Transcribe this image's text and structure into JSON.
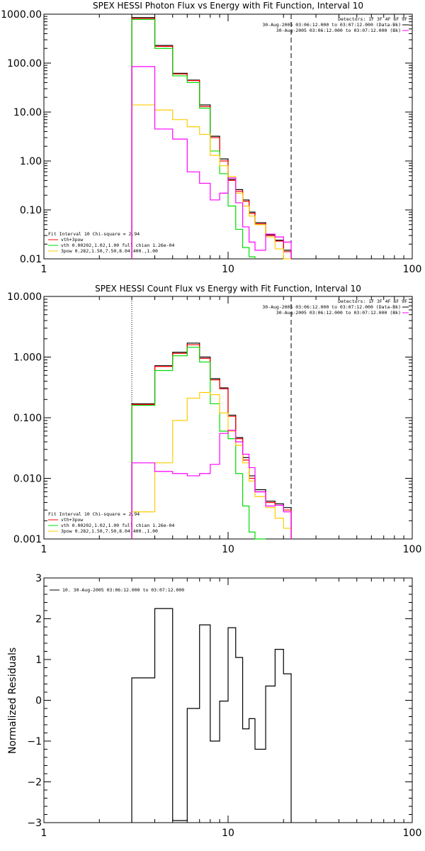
{
  "colors": {
    "sum": "#000000",
    "vth_3pow": "#ff0000",
    "vth": "#00dd00",
    "pow": "#ffcc00",
    "data": "#ff00ff",
    "boundary": "#000000"
  },
  "chart_data": [
    {
      "id": "photon",
      "type": "line",
      "step": true,
      "title": "SPEX HESSI Photon Flux vs Energy with Fit Function, Interval 10",
      "xlabel": "",
      "ylabel": "",
      "xscale": "log",
      "yscale": "log",
      "xlim": [
        1,
        100
      ],
      "ylim": [
        0.01,
        1000
      ],
      "xticks": [
        1,
        10,
        100
      ],
      "xtick_labels": [
        "1",
        "10",
        "100"
      ],
      "yticks": [
        0.01,
        0.1,
        1,
        10,
        100,
        1000
      ],
      "ytick_labels": [
        "0.01",
        "0.10",
        "1.00",
        "10.00",
        "100.00",
        "1000.00"
      ],
      "legend_topright": [
        "Detectors: 1F 3F 4F 6F 9F",
        "30-Aug-2005 03:06:12.000 to 03:07:12.000 (Data-Bk)",
        "30-Aug-2005 03:06:12.000 to 03:07:12.000 (Bk)"
      ],
      "legend_bottomleft": [
        "Fit Interval 10   Chi-square = 2.94",
        "vth+3pow",
        "vth 0.00202,1.02,1.00  full chian 1.26e-04",
        "3pow 0.282,1.50,7.50,8.04,400.,1.00"
      ],
      "bin_edges": [
        3.0,
        4.0,
        5.0,
        6.0,
        7.0,
        8.0,
        9.0,
        10.0,
        11.0,
        12.0,
        13.0,
        14.0,
        16.0,
        18.0,
        20.0,
        22.0
      ],
      "vlines": [
        3.0,
        22.0
      ],
      "series": [
        {
          "key": "sum",
          "values": [
            850,
            230,
            62,
            45,
            14,
            3.2,
            1.1,
            0.42,
            0.26,
            0.16,
            0.09,
            0.055,
            0.031,
            0.024,
            0.015
          ]
        },
        {
          "key": "vth_3pow",
          "values": [
            820,
            220,
            60,
            44,
            13,
            3.0,
            1.0,
            0.4,
            0.24,
            0.15,
            0.085,
            0.052,
            0.03,
            0.023,
            0.014
          ]
        },
        {
          "key": "vth",
          "values": [
            780,
            200,
            55,
            40,
            12,
            1.6,
            0.55,
            0.12,
            0.04,
            0.017,
            0.011
          ]
        },
        {
          "key": "pow",
          "values": [
            14,
            11,
            7,
            5,
            3.5,
            1.3,
            0.8,
            0.48,
            0.22,
            0.12,
            0.075,
            0.05,
            0.028,
            0.016,
            0.01
          ]
        },
        {
          "key": "data",
          "values": [
            85,
            4.5,
            2.8,
            0.6,
            0.35,
            0.16,
            0.22,
            0.45,
            0.14,
            0.045,
            0.022,
            0.015,
            0.032,
            0.028,
            0.022
          ]
        }
      ]
    },
    {
      "id": "count",
      "type": "line",
      "step": true,
      "title": "SPEX HESSI Count Flux vs Energy with Fit Function, Interval 10",
      "xlabel": "",
      "ylabel": "",
      "xscale": "log",
      "yscale": "log",
      "xlim": [
        1,
        100
      ],
      "ylim": [
        0.001,
        10
      ],
      "xticks": [
        1,
        10,
        100
      ],
      "xtick_labels": [
        "1",
        "10",
        "100"
      ],
      "yticks": [
        0.001,
        0.01,
        0.1,
        1,
        10
      ],
      "ytick_labels": [
        "0.001",
        "0.010",
        "0.100",
        "1.000",
        "10.000"
      ],
      "legend_topright": [
        "Detectors: 1F 3F 4F 6F 9F",
        "30-Aug-2005 03:06:12.000 to 03:07:12.000 (Data-Bk)",
        "30-Aug-2005 03:06:12.000 to 03:07:12.000 (Bk)"
      ],
      "legend_bottomleft": [
        "Fit Interval 10   Chi-square = 2.94",
        "vth+3pow",
        "vth 0.00202,1.02,1.00  full chian 1.26e-04",
        "3pow 0.282,1.50,7.50,8.04,400.,1.00"
      ],
      "bin_edges": [
        3.0,
        4.0,
        5.0,
        6.0,
        7.0,
        8.0,
        9.0,
        10.0,
        11.0,
        12.0,
        13.0,
        14.0,
        16.0,
        18.0,
        20.0,
        22.0
      ],
      "vlines": [
        3.0,
        22.0
      ],
      "series": [
        {
          "key": "sum",
          "values": [
            0.17,
            0.72,
            1.2,
            1.7,
            1.0,
            0.44,
            0.31,
            0.11,
            0.047,
            0.022,
            0.011,
            0.0065,
            0.0042,
            0.0038,
            0.0033
          ]
        },
        {
          "key": "vth_3pow",
          "values": [
            0.165,
            0.7,
            1.15,
            1.6,
            0.95,
            0.42,
            0.3,
            0.105,
            0.045,
            0.02,
            0.01,
            0.006,
            0.004,
            0.0036,
            0.003
          ]
        },
        {
          "key": "vth",
          "values": [
            0.16,
            0.6,
            1.05,
            1.45,
            0.83,
            0.17,
            0.06,
            0.045,
            0.012,
            0.0035,
            0.0013,
            0.0008
          ]
        },
        {
          "key": "pow",
          "values": [
            0.0028,
            0.018,
            0.09,
            0.21,
            0.26,
            0.24,
            0.12,
            0.06,
            0.035,
            0.018,
            0.009,
            0.005,
            0.0033,
            0.0022,
            0.0015
          ]
        },
        {
          "key": "data",
          "values": [
            0.018,
            0.013,
            0.012,
            0.011,
            0.012,
            0.017,
            0.055,
            0.062,
            0.04,
            0.025,
            0.015,
            0.006,
            0.0035,
            0.0036,
            0.0028
          ]
        }
      ]
    },
    {
      "id": "residuals",
      "type": "line",
      "step": true,
      "title": "",
      "xlabel": "",
      "ylabel": "Normalized Residuals",
      "xscale": "log",
      "yscale": "linear",
      "xlim": [
        1,
        100
      ],
      "ylim": [
        -3,
        3
      ],
      "xticks": [
        1,
        10,
        100
      ],
      "xtick_labels": [
        "1",
        "10",
        "100"
      ],
      "yticks": [
        -3,
        -2,
        -1,
        0,
        1,
        2,
        3
      ],
      "ytick_labels": [
        "−3",
        "−2",
        "−1",
        "0",
        "1",
        "2",
        "3"
      ],
      "legend_topleft": "10. 30-Aug-2005 03:06:12.000 to 03:07:12.000",
      "bin_edges": [
        3.0,
        4.0,
        5.0,
        6.0,
        7.0,
        8.0,
        9.0,
        10.0,
        11.0,
        12.0,
        13.0,
        14.0,
        16.0,
        18.0,
        20.0,
        22.0
      ],
      "series": [
        {
          "key": "sum",
          "values": [
            0.55,
            2.25,
            -2.95,
            -0.2,
            1.85,
            -1.0,
            -0.02,
            1.78,
            1.05,
            -0.7,
            -0.45,
            -1.2,
            0.35,
            1.25,
            0.65
          ]
        }
      ]
    }
  ]
}
